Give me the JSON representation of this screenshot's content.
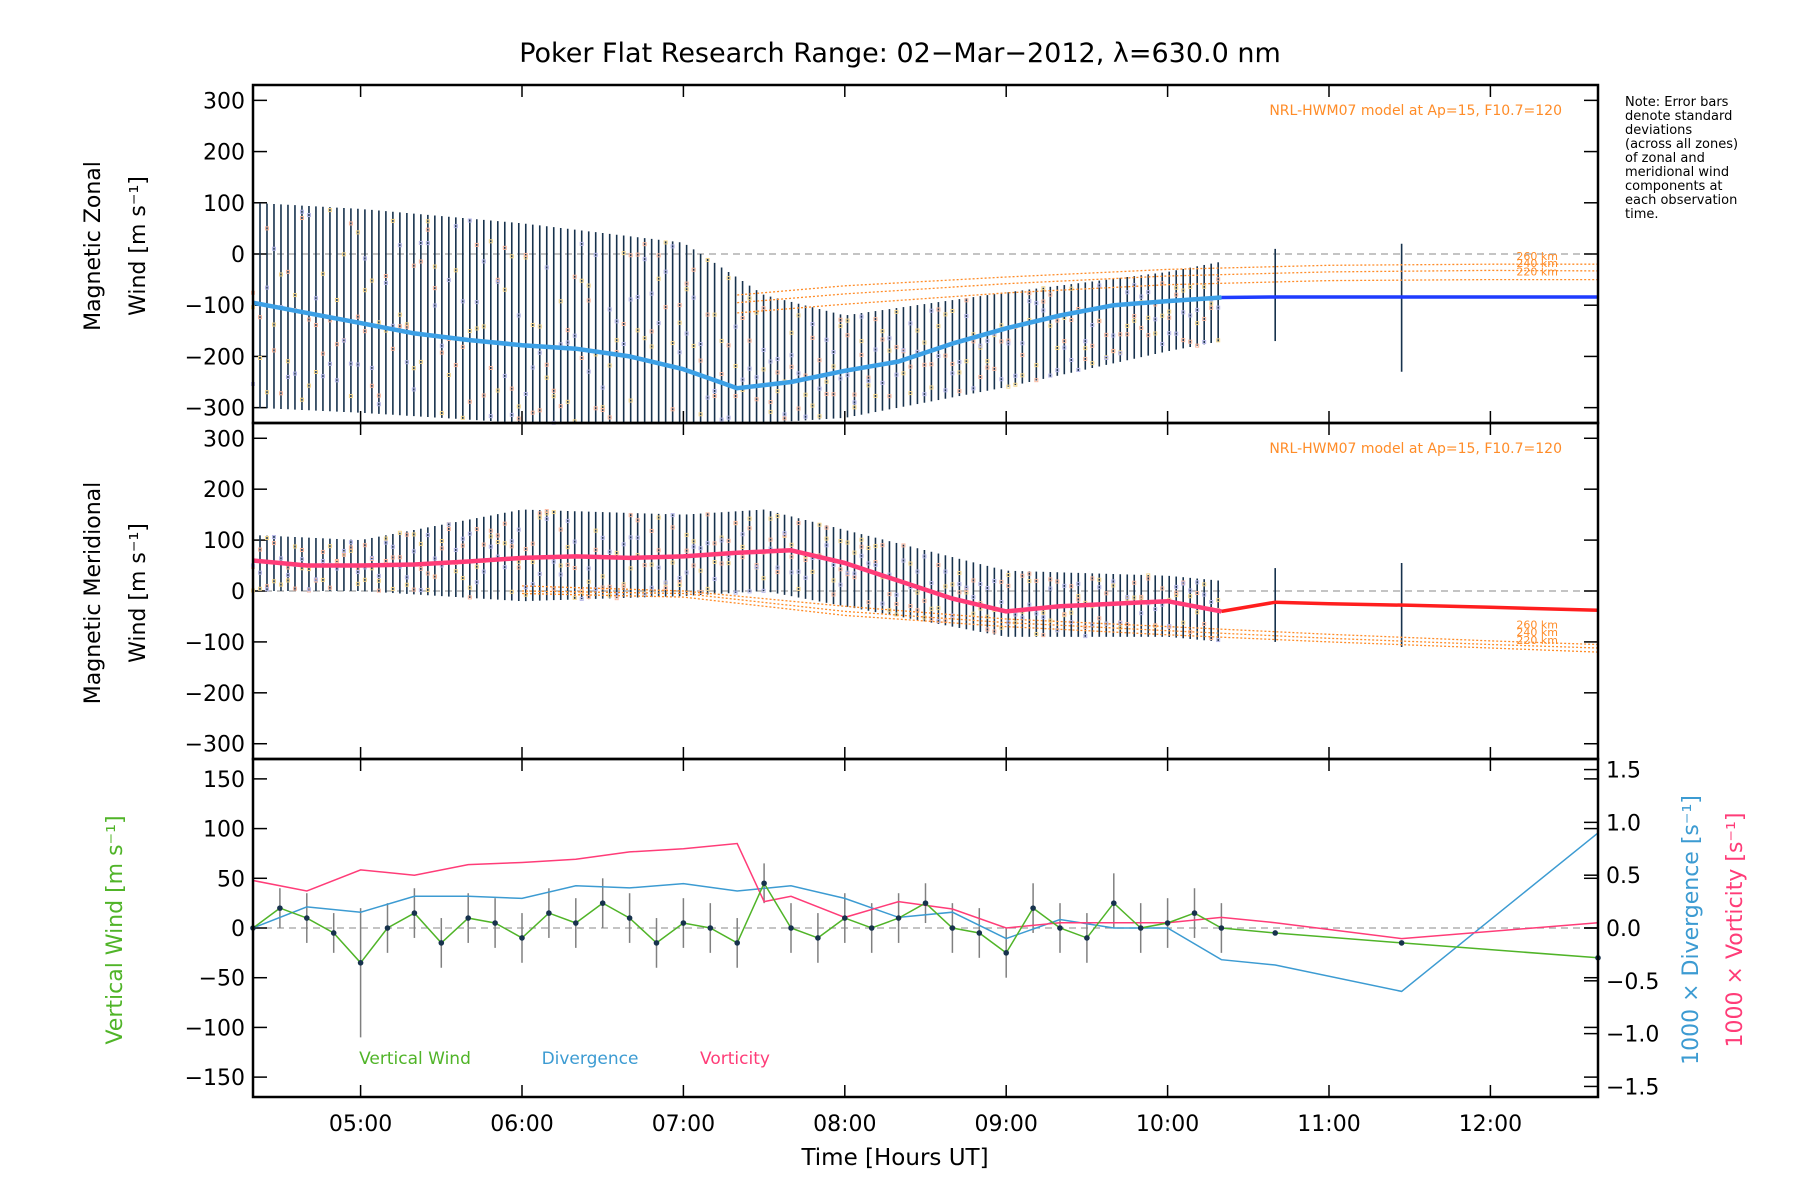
{
  "title": "Poker Flat Research Range: 02−Mar−2012, λ=630.0 nm",
  "note": [
    "Note: Error bars",
    "denote standard",
    "deviations",
    "(across all zones)",
    "of zonal and",
    "meridional wind",
    "components at",
    "each observation",
    "time."
  ],
  "xlabel": "Time [Hours UT]",
  "x_tick_labels": [
    "05:00",
    "06:00",
    "07:00",
    "08:00",
    "09:00",
    "10:00",
    "11:00",
    "12:00"
  ],
  "colors": {
    "frame": "#000000",
    "model": "#ff8c28",
    "zonal_mean": "#3ca0e6",
    "zonal_extrap": "#1e3cff",
    "meridional_mean": "#ff3c78",
    "meridional_extrap": "#ff1e1e",
    "errorbar": "#17324d",
    "vertical": "#50b428",
    "divergence": "#3c9bd2",
    "vorticity": "#ff3c78",
    "zero_line": "#a0a0a0"
  },
  "chart_data": [
    {
      "type": "line",
      "panel": "zonal",
      "ylabel": [
        "Magnetic Zonal",
        "Wind [m s⁻¹]"
      ],
      "ylim": [
        -330,
        330
      ],
      "xlim": [
        "04:20",
        "12:40"
      ],
      "y_ticks": [
        "300",
        "200",
        "100",
        "0",
        "−100",
        "−200",
        "−300"
      ],
      "model_label": "NRL-HWM07 model at Ap=15, F10.7=120",
      "model_altitudes": [
        "260 km",
        "240 km",
        "220 km"
      ],
      "model_curves": [
        {
          "name": "260 km",
          "x": [
            "07:20",
            "08:00",
            "09:00",
            "10:00",
            "11:00",
            "12:00",
            "12:40"
          ],
          "y": [
            -80,
            -62,
            -45,
            -30,
            -22,
            -20,
            -20
          ]
        },
        {
          "name": "240 km",
          "x": [
            "07:20",
            "08:00",
            "09:00",
            "10:00",
            "11:00",
            "12:00",
            "12:40"
          ],
          "y": [
            -95,
            -78,
            -58,
            -43,
            -35,
            -32,
            -33
          ]
        },
        {
          "name": "220 km",
          "x": [
            "07:20",
            "08:00",
            "09:00",
            "10:00",
            "11:00",
            "12:00",
            "12:40"
          ],
          "y": [
            -115,
            -98,
            -76,
            -60,
            -52,
            -50,
            -50
          ]
        }
      ],
      "series": [
        {
          "name": "mean",
          "x": [
            "04:20",
            "04:40",
            "05:00",
            "05:20",
            "05:40",
            "06:00",
            "06:20",
            "06:40",
            "07:00",
            "07:20",
            "07:40",
            "08:00",
            "08:20",
            "08:40",
            "09:00",
            "09:20",
            "09:40",
            "10:00",
            "10:20"
          ],
          "y": [
            -95,
            -115,
            -135,
            -155,
            -168,
            -178,
            -185,
            -200,
            -225,
            -262,
            -250,
            -228,
            -210,
            -175,
            -145,
            -120,
            -100,
            -92,
            -85
          ]
        },
        {
          "name": "extrapolated",
          "x": [
            "10:20",
            "10:40",
            "11:00",
            "11:30",
            "12:00",
            "12:40"
          ],
          "y": [
            -85,
            -84,
            -84,
            -84,
            -84,
            -84
          ]
        }
      ],
      "spread": {
        "x": [
          "04:20",
          "05:00",
          "06:00",
          "07:00",
          "07:30",
          "08:00",
          "09:00",
          "10:00",
          "10:20"
        ],
        "upper": [
          100,
          88,
          60,
          22,
          -80,
          -120,
          -75,
          -35,
          -15
        ],
        "lower": [
          -300,
          -310,
          -330,
          -330,
          -330,
          -320,
          -260,
          -190,
          -170
        ]
      },
      "isolated_bars": [
        {
          "x": "10:40",
          "lower": -170,
          "upper": 10
        },
        {
          "x": "11:27",
          "lower": -230,
          "upper": 20
        }
      ]
    },
    {
      "type": "line",
      "panel": "meridional",
      "ylabel": [
        "Magnetic Meridional",
        "Wind [m s⁻¹]"
      ],
      "ylim": [
        -330,
        330
      ],
      "xlim": [
        "04:20",
        "12:40"
      ],
      "y_ticks": [
        "300",
        "200",
        "100",
        "0",
        "−100",
        "−200",
        "−300"
      ],
      "model_label": "NRL-HWM07 model at Ap=15, F10.7=120",
      "model_altitudes": [
        "260 km",
        "240 km",
        "220 km"
      ],
      "model_curves": [
        {
          "name": "260 km",
          "x": [
            "06:00",
            "07:00",
            "08:00",
            "09:00",
            "10:00",
            "11:00",
            "12:00",
            "12:40"
          ],
          "y": [
            10,
            0,
            -30,
            -55,
            -70,
            -85,
            -98,
            -105
          ]
        },
        {
          "name": "240 km",
          "x": [
            "06:00",
            "07:00",
            "08:00",
            "09:00",
            "10:00",
            "11:00",
            "12:00",
            "12:40"
          ],
          "y": [
            0,
            -5,
            -40,
            -62,
            -78,
            -93,
            -105,
            -112
          ]
        },
        {
          "name": "220 km",
          "x": [
            "06:00",
            "07:00",
            "08:00",
            "09:00",
            "10:00",
            "11:00",
            "12:00",
            "12:40"
          ],
          "y": [
            -5,
            -12,
            -48,
            -70,
            -86,
            -100,
            -112,
            -120
          ]
        }
      ],
      "series": [
        {
          "name": "mean",
          "x": [
            "04:20",
            "04:40",
            "05:00",
            "05:20",
            "05:40",
            "06:00",
            "06:20",
            "06:40",
            "07:00",
            "07:20",
            "07:40",
            "08:00",
            "08:20",
            "08:40",
            "09:00",
            "09:20",
            "09:40",
            "10:00",
            "10:20"
          ],
          "y": [
            60,
            50,
            50,
            52,
            58,
            65,
            68,
            65,
            68,
            75,
            80,
            55,
            20,
            -15,
            -40,
            -30,
            -25,
            -20,
            -40
          ]
        },
        {
          "name": "extrapolated",
          "x": [
            "10:20",
            "10:40",
            "11:00",
            "11:30",
            "12:00",
            "12:40"
          ],
          "y": [
            -40,
            -22,
            -25,
            -28,
            -32,
            -38
          ]
        }
      ],
      "spread": {
        "x": [
          "04:20",
          "05:00",
          "06:00",
          "07:00",
          "07:30",
          "08:00",
          "09:00",
          "10:00",
          "10:20"
        ],
        "upper": [
          110,
          100,
          160,
          150,
          160,
          120,
          40,
          30,
          20
        ],
        "lower": [
          0,
          0,
          -20,
          -10,
          0,
          -30,
          -90,
          -90,
          -100
        ]
      },
      "isolated_bars": [
        {
          "x": "10:40",
          "lower": -100,
          "upper": 45
        },
        {
          "x": "11:27",
          "lower": -110,
          "upper": 55
        }
      ]
    },
    {
      "type": "line",
      "panel": "vertical",
      "ylabel": "Vertical Wind [m s⁻¹]",
      "ylim": [
        -170,
        170
      ],
      "xlim": [
        "04:20",
        "12:40"
      ],
      "y_ticks": [
        "150",
        "100",
        "50",
        "0",
        "−50",
        "−100",
        "−150"
      ],
      "y2label": [
        "1000 × Divergence [s⁻¹]",
        "1000 × Vorticity [s⁻¹]"
      ],
      "y2lim": [
        -1.6,
        1.6
      ],
      "y2_ticks": [
        "1.5",
        "1.0",
        "0.5",
        "0.0",
        "−0.5",
        "−1.0",
        "−1.5"
      ],
      "legend": [
        "Vertical Wind",
        "Divergence",
        "Vorticity"
      ],
      "series": [
        {
          "name": "Vertical Wind",
          "axis": "left",
          "x": [
            "04:20",
            "04:30",
            "04:40",
            "04:50",
            "05:00",
            "05:10",
            "05:20",
            "05:30",
            "05:40",
            "05:50",
            "06:00",
            "06:10",
            "06:20",
            "06:30",
            "06:40",
            "06:50",
            "07:00",
            "07:10",
            "07:20",
            "07:30",
            "07:40",
            "07:50",
            "08:00",
            "08:10",
            "08:20",
            "08:30",
            "08:40",
            "08:50",
            "09:00",
            "09:10",
            "09:20",
            "09:30",
            "09:40",
            "09:50",
            "10:00",
            "10:10",
            "10:20",
            "10:40",
            "11:27",
            "12:40"
          ],
          "y": [
            0,
            20,
            10,
            -5,
            -35,
            0,
            15,
            -15,
            10,
            5,
            -10,
            15,
            5,
            25,
            10,
            -15,
            5,
            0,
            -15,
            45,
            0,
            -10,
            10,
            0,
            10,
            25,
            0,
            -5,
            -25,
            20,
            0,
            -10,
            25,
            0,
            5,
            15,
            0,
            -5,
            -15,
            -30
          ]
        },
        {
          "name": "Divergence",
          "axis": "right",
          "x": [
            "04:20",
            "04:40",
            "05:00",
            "05:20",
            "05:40",
            "06:00",
            "06:20",
            "06:40",
            "07:00",
            "07:20",
            "07:40",
            "08:00",
            "08:20",
            "08:40",
            "09:00",
            "09:20",
            "09:40",
            "10:00",
            "10:20",
            "10:40",
            "11:27",
            "12:40"
          ],
          "y": [
            0.0,
            0.2,
            0.15,
            0.3,
            0.3,
            0.28,
            0.4,
            0.38,
            0.42,
            0.35,
            0.4,
            0.28,
            0.1,
            0.15,
            -0.1,
            0.08,
            0.0,
            0.0,
            -0.3,
            -0.35,
            -0.6,
            0.9
          ]
        },
        {
          "name": "Vorticity",
          "axis": "right",
          "x": [
            "04:20",
            "04:40",
            "05:00",
            "05:20",
            "05:40",
            "06:00",
            "06:20",
            "06:40",
            "07:00",
            "07:20",
            "07:30",
            "07:40",
            "08:00",
            "08:20",
            "08:40",
            "09:00",
            "09:20",
            "09:40",
            "10:00",
            "10:20",
            "10:40",
            "11:27",
            "12:40"
          ],
          "y": [
            0.45,
            0.35,
            0.55,
            0.5,
            0.6,
            0.62,
            0.65,
            0.72,
            0.75,
            0.8,
            0.25,
            0.3,
            0.1,
            0.25,
            0.18,
            0.0,
            0.05,
            0.05,
            0.05,
            0.1,
            0.05,
            -0.1,
            0.05
          ]
        }
      ],
      "error_bars": {
        "x": [
          "04:20",
          "04:30",
          "04:40",
          "04:50",
          "05:00",
          "05:10",
          "05:20",
          "05:30",
          "05:40",
          "05:50",
          "06:00",
          "06:10",
          "06:20",
          "06:30",
          "06:40",
          "06:50",
          "07:00",
          "07:10",
          "07:20",
          "07:30",
          "07:40",
          "07:50",
          "08:00",
          "08:10",
          "08:20",
          "08:30",
          "08:40",
          "08:50",
          "09:00",
          "09:10",
          "09:20",
          "09:30",
          "09:40",
          "09:50",
          "10:00",
          "10:10",
          "10:20"
        ],
        "lower": [
          -20,
          0,
          -15,
          -25,
          -110,
          -25,
          -10,
          -40,
          -15,
          -20,
          -35,
          -10,
          -20,
          0,
          -15,
          -40,
          -20,
          -25,
          -40,
          25,
          -25,
          -35,
          -15,
          -25,
          -15,
          5,
          -25,
          -30,
          -50,
          -5,
          -25,
          -35,
          0,
          -25,
          -20,
          -10,
          -25
        ],
        "upper": [
          20,
          40,
          35,
          15,
          20,
          25,
          40,
          10,
          35,
          30,
          15,
          40,
          30,
          50,
          35,
          10,
          30,
          25,
          10,
          65,
          25,
          15,
          35,
          25,
          35,
          45,
          25,
          20,
          0,
          45,
          25,
          15,
          55,
          25,
          30,
          40,
          25
        ]
      }
    }
  ]
}
